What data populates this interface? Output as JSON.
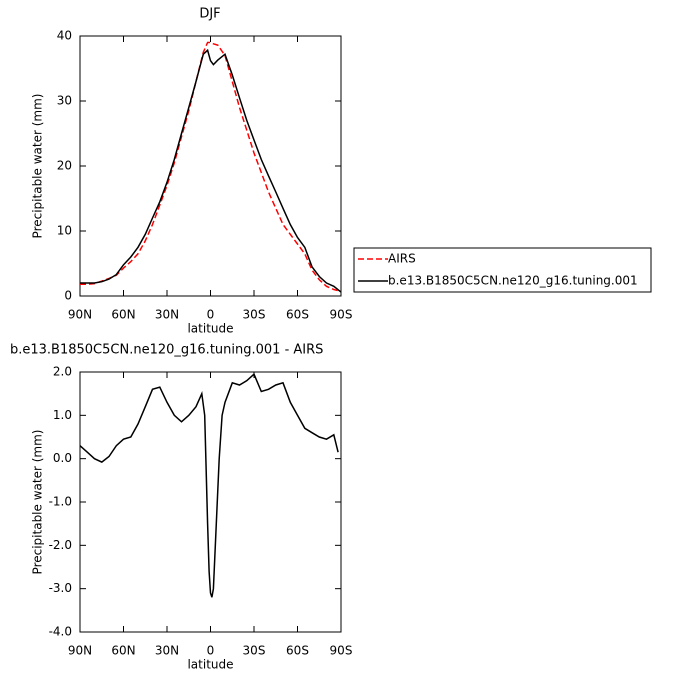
{
  "chart_data": [
    {
      "type": "line",
      "title": "DJF",
      "xlabel": "latitude",
      "ylabel": "Precipitable water (mm)",
      "x": [
        90,
        85,
        80,
        75,
        70,
        65,
        60,
        55,
        50,
        45,
        40,
        35,
        30,
        25,
        20,
        15,
        10,
        5,
        2,
        0,
        -2,
        -5,
        -10,
        -15,
        -20,
        -25,
        -30,
        -35,
        -40,
        -45,
        -50,
        -55,
        -60,
        -65,
        -70,
        -75,
        -80,
        -85,
        -90
      ],
      "xlim": [
        90,
        -90
      ],
      "xticks": [
        {
          "value": 90,
          "label": "90N"
        },
        {
          "value": 60,
          "label": "60N"
        },
        {
          "value": 30,
          "label": "30N"
        },
        0,
        {
          "value": -30,
          "label": "30S"
        },
        {
          "value": -60,
          "label": "60S"
        },
        {
          "value": -90,
          "label": "90S"
        }
      ],
      "ylim": [
        0,
        40
      ],
      "yticks": [
        0,
        10,
        20,
        30,
        40
      ],
      "legend": "right",
      "series": [
        {
          "name": "AIRS",
          "color": "#ff0000",
          "linestyle": "dashed",
          "values": [
            1.8,
            1.8,
            1.9,
            2.3,
            2.7,
            3.2,
            4.3,
            5.3,
            6.5,
            8.5,
            11,
            14,
            17,
            20.5,
            24.5,
            28.5,
            33,
            37.5,
            39,
            39,
            38.8,
            38.6,
            37,
            33,
            29,
            25.5,
            22,
            19,
            16,
            13.5,
            11,
            9.5,
            8,
            6.5,
            4,
            2.5,
            1.5,
            1.0,
            0.7
          ]
        },
        {
          "name": "b.e13.B1850C5CN.ne120_g16.tuning.001",
          "color": "#000000",
          "linestyle": "solid",
          "values": [
            2.0,
            2.0,
            2.0,
            2.2,
            2.6,
            3.3,
            4.8,
            6.0,
            7.5,
            9.5,
            12,
            14.5,
            17.5,
            21,
            25,
            29,
            33,
            37.2,
            37.8,
            36.2,
            35.6,
            36.3,
            37.2,
            34,
            30.5,
            27,
            24,
            21,
            18.5,
            16,
            13.5,
            11,
            9,
            7.5,
            4.5,
            3,
            2,
            1.5,
            0.6
          ]
        }
      ]
    },
    {
      "type": "line",
      "title": "b.e13.B1850C5CN.ne120_g16.tuning.001 - AIRS",
      "xlabel": "latitude",
      "ylabel": "Precipitable water (mm)",
      "x": [
        90,
        85,
        80,
        75,
        70,
        65,
        60,
        55,
        50,
        45,
        40,
        35,
        30,
        25,
        20,
        15,
        10,
        6,
        4,
        2,
        1,
        0,
        -1,
        -2,
        -4,
        -6,
        -8,
        -10,
        -15,
        -20,
        -25,
        -30,
        -35,
        -40,
        -45,
        -50,
        -55,
        -60,
        -65,
        -70,
        -75,
        -80,
        -85,
        -88
      ],
      "xlim": [
        90,
        -90
      ],
      "xticks": [
        {
          "value": 90,
          "label": "90N"
        },
        {
          "value": 60,
          "label": "60N"
        },
        {
          "value": 30,
          "label": "30N"
        },
        0,
        {
          "value": -30,
          "label": "30S"
        },
        {
          "value": -60,
          "label": "60S"
        },
        {
          "value": -90,
          "label": "90S"
        }
      ],
      "ylim": [
        -4,
        2
      ],
      "yticks": [
        {
          "value": -4,
          "label": "-4.0"
        },
        {
          "value": -3,
          "label": "-3.0"
        },
        {
          "value": -2,
          "label": "-2.0"
        },
        {
          "value": -1,
          "label": "-1.0"
        },
        {
          "value": 0,
          "label": "0.0"
        },
        {
          "value": 1,
          "label": "1.0"
        },
        {
          "value": 2,
          "label": "2.0"
        }
      ],
      "series": [
        {
          "color": "#000000",
          "linestyle": "solid",
          "values": [
            0.3,
            0.15,
            0.0,
            -0.08,
            0.05,
            0.3,
            0.45,
            0.5,
            0.8,
            1.2,
            1.6,
            1.65,
            1.3,
            1.0,
            0.85,
            1.0,
            1.2,
            1.5,
            1.0,
            -1.5,
            -2.6,
            -3.1,
            -3.2,
            -3.0,
            -1.5,
            0,
            1.0,
            1.3,
            1.75,
            1.7,
            1.8,
            1.95,
            1.55,
            1.6,
            1.7,
            1.75,
            1.3,
            1.0,
            0.7,
            0.6,
            0.5,
            0.45,
            0.55,
            0.15
          ]
        }
      ]
    }
  ]
}
